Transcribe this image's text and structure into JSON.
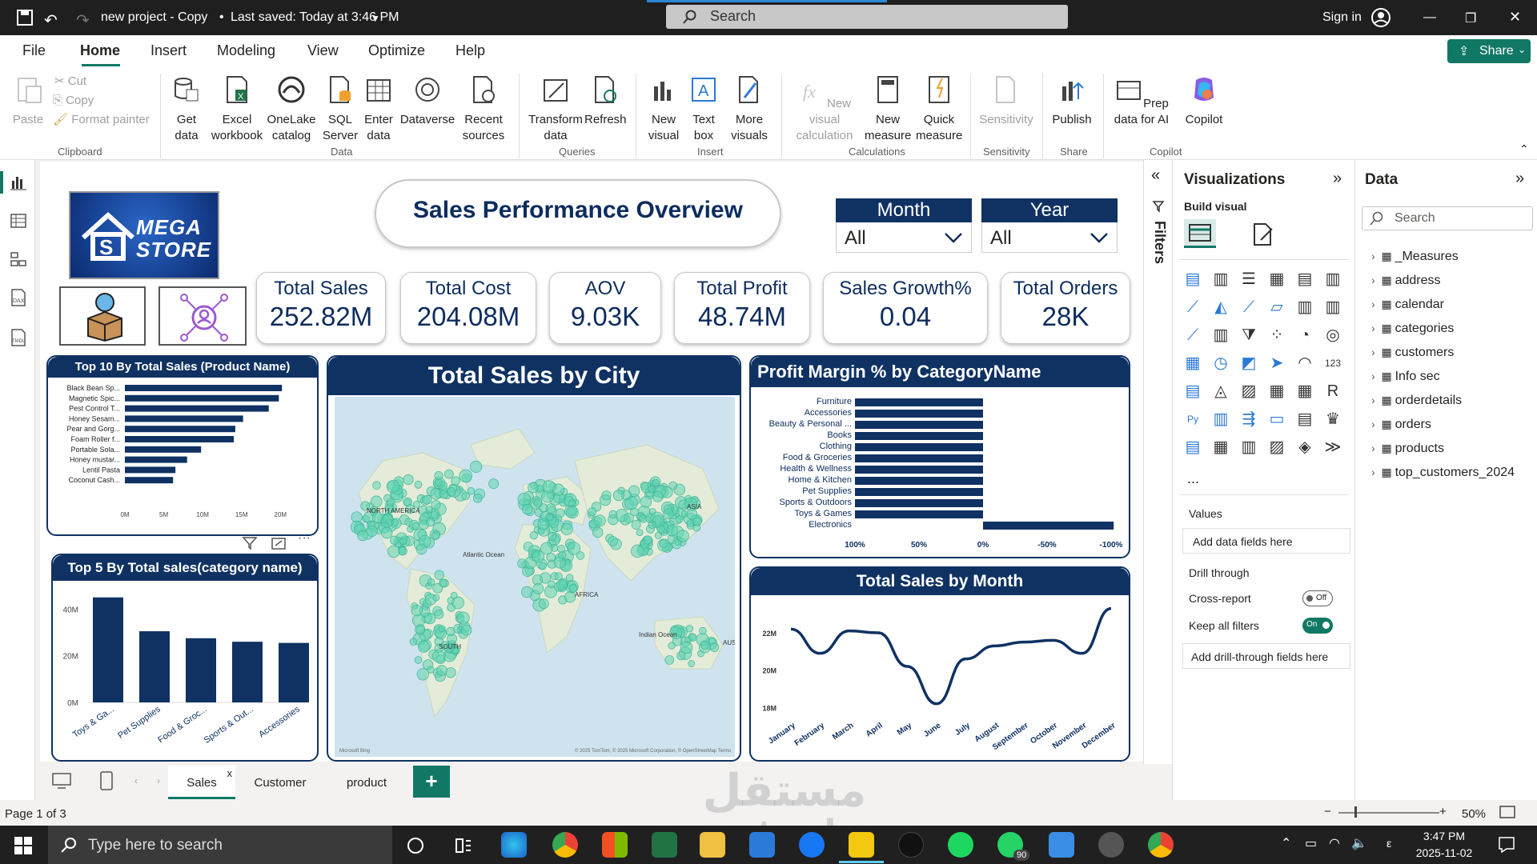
{
  "titlebar": {
    "title": "new project - Copy",
    "saved": "Last saved: Today at 3:46 PM",
    "search_placeholder": "Search",
    "sign_in": "Sign in"
  },
  "menu": {
    "file": "File",
    "home": "Home",
    "insert": "Insert",
    "modeling": "Modeling",
    "view": "View",
    "optimize": "Optimize",
    "help": "Help",
    "share": "Share"
  },
  "ribbon": {
    "paste": "Paste",
    "cut": "Cut",
    "copy": "Copy",
    "format_painter": "Format painter",
    "clipboard": "Clipboard",
    "get_data": "Get data",
    "excel": "Excel workbook",
    "onelake": "OneLake catalog",
    "sql": "SQL Server",
    "enter_data": "Enter data",
    "dataverse": "Dataverse",
    "recent": "Recent sources",
    "data": "Data",
    "transform": "Transform data",
    "refresh": "Refresh",
    "queries": "Queries",
    "new_visual": "New visual",
    "text_box": "Text box",
    "more_visuals": "More visuals",
    "insert": "Insert",
    "new_visual_calc": "New visual calculation",
    "new_measure": "New measure",
    "quick_measure": "Quick measure",
    "calculations": "Calculations",
    "sensitivity_btn": "Sensitivity",
    "sensitivity": "Sensitivity",
    "publish": "Publish",
    "share": "Share",
    "prep": "Prep data for AI",
    "copilot_btn": "Copilot",
    "copilot": "Copilot"
  },
  "report": {
    "title": "Sales Performance Overview",
    "logo_line1": "MEGA",
    "logo_line2": "STORE",
    "slicers": [
      {
        "label": "Month",
        "value": "All"
      },
      {
        "label": "Year",
        "value": "All"
      }
    ],
    "kpis": [
      {
        "label": "Total Sales",
        "value": "252.82M"
      },
      {
        "label": "Total Cost",
        "value": "204.08M"
      },
      {
        "label": "AOV",
        "value": "9.03K"
      },
      {
        "label": "Total Profit",
        "value": "48.74M"
      },
      {
        "label": "Sales Growth%",
        "value": "0.04"
      },
      {
        "label": "Total Orders",
        "value": "28K"
      }
    ],
    "map_title": "Total Sales by City",
    "map_labels": {
      "na": "NORTH AMERICA",
      "atl": "Atlantic Ocean",
      "ind": "Indian Ocean",
      "sa": "SOUTH",
      "afr": "AFRICA",
      "as": "ASIA",
      "aus": "AUST",
      "credit": "© 2025 TomTom, © 2025 Microsoft Corporation, © OpenStreetMap  Terms",
      "brand": "Microsoft Bing"
    }
  },
  "chart_data": [
    {
      "type": "bar",
      "orientation": "horizontal",
      "title": "Top 10 By Total Sales (Product Name)",
      "categories": [
        "Black Bean Sp...",
        "Magnetic Spic...",
        "Pest Control T...",
        "Honey Sesam...",
        "Pear and Gorg...",
        "Foam Roller f...",
        "Portable Sola...",
        "Honey mustar...",
        "Lentil Pasta",
        "Coconut Cash..."
      ],
      "values": [
        20.2,
        19.8,
        18.5,
        15.2,
        14.2,
        14.0,
        9.8,
        8.0,
        6.5,
        6.2
      ],
      "ticks": [
        "0M",
        "5M",
        "10M",
        "15M",
        "20M"
      ],
      "xlim": [
        0,
        21
      ]
    },
    {
      "type": "bar",
      "title": "Top 5 By Total sales(category name)",
      "categories": [
        "Toys & Ga...",
        "Pet Supplies",
        "Food & Groc...",
        "Sports & Out...",
        "Accessories"
      ],
      "values": [
        45,
        30.5,
        27.5,
        26,
        25.5
      ],
      "ticks": [
        "0M",
        "20M",
        "40M"
      ],
      "ylim": [
        0,
        48
      ]
    },
    {
      "type": "bar",
      "orientation": "horizontal",
      "title": "Profit Margin % by CategoryName",
      "categories": [
        "Furniture",
        "Accessories",
        "Beauty & Personal ...",
        "Books",
        "Clothing",
        "Food & Groceries",
        "Health & Wellness",
        "Home & Kitchen",
        "Pet Supplies",
        "Sports & Outdoors",
        "Toys & Games",
        "Electronics"
      ],
      "values": [
        100,
        100,
        100,
        100,
        100,
        100,
        100,
        100,
        100,
        100,
        100,
        -102
      ],
      "ticks": [
        "100%",
        "50%",
        "0%",
        "-50%",
        "-100%"
      ],
      "xlim": [
        100,
        -100
      ]
    },
    {
      "type": "line",
      "title": "Total Sales by Month",
      "categories": [
        "January",
        "February",
        "March",
        "April",
        "May",
        "June",
        "July",
        "August",
        "September",
        "October",
        "November",
        "December"
      ],
      "values": [
        22.2,
        20.9,
        22.1,
        22.0,
        20.2,
        18.2,
        20.6,
        21.3,
        21.5,
        21.6,
        20.9,
        23.3
      ],
      "ticks": [
        "18M",
        "20M",
        "22M"
      ],
      "ylim": [
        17.5,
        23.5
      ]
    }
  ],
  "filters_label": "Filters",
  "visualizations": {
    "title": "Visualizations",
    "build": "Build visual",
    "values": "Values",
    "add_fields": "Add data fields here",
    "drill": "Drill through",
    "cross": "Cross-report",
    "cross_state": "Off",
    "keep": "Keep all filters",
    "keep_state": "On",
    "add_drill": "Add drill-through fields here",
    "more": "..."
  },
  "data_pane": {
    "title": "Data",
    "search": "Search",
    "tables": [
      "_Measures",
      "address",
      "calendar",
      "categories",
      "customers",
      "Info sec",
      "orderdetails",
      "orders",
      "products",
      "top_customers_2024"
    ]
  },
  "pages": [
    "Sales",
    "Customer",
    "product"
  ],
  "status": {
    "page": "Page 1 of 3",
    "zoom": "50%"
  },
  "taskbar": {
    "search": "Type here to search",
    "time": "3:47 PM",
    "date": "2025-11-02",
    "whatsapp_badge": "90"
  },
  "watermark": "مستقل mostaql.com",
  "colors": {
    "navy": "#0f3263",
    "map_dot": "#5fd3b3",
    "accent": "#217346"
  }
}
